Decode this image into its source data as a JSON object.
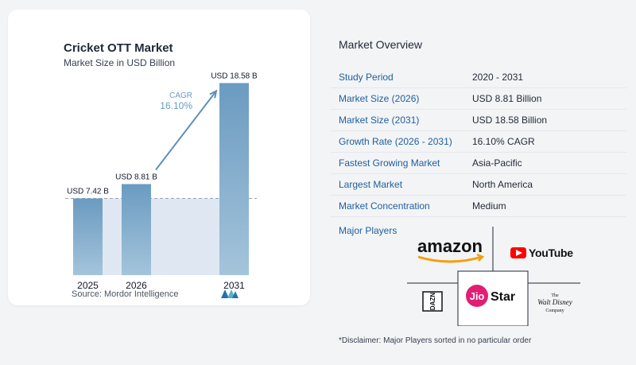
{
  "chart_data": {
    "type": "bar",
    "title": "Cricket OTT Market",
    "subtitle": "Market Size in USD Billion",
    "categories": [
      "2025",
      "2026",
      "2031"
    ],
    "values": [
      7.42,
      8.81,
      18.58
    ],
    "value_labels": [
      "USD 7.42 B",
      "USD 8.81 B",
      "USD 18.58 B"
    ],
    "ylim": [
      0,
      20
    ],
    "cagr_label": "CAGR",
    "cagr_value": "16.10%",
    "grid": false,
    "colors": {
      "bar": "#6b9bc1",
      "bar_light": "#a4c4db",
      "band": "#dfe8f2",
      "arrow": "#5f8fb8",
      "cagr": "#6b9bc1"
    }
  },
  "source": "Source:  Mordor Intelligence",
  "overview": {
    "title": "Market Overview",
    "rows": [
      {
        "label": "Study Period",
        "value": "2020 - 2031"
      },
      {
        "label": "Market Size (2026)",
        "value": "USD 8.81 Billion"
      },
      {
        "label": "Market Size (2031)",
        "value": "USD 18.58 Billion"
      },
      {
        "label": "Growth Rate (2026 - 2031)",
        "value": "16.10% CAGR"
      },
      {
        "label": "Fastest Growing Market",
        "value": "Asia-Pacific"
      },
      {
        "label": "Largest Market",
        "value": "North America"
      },
      {
        "label": "Market Concentration",
        "value": "Medium"
      }
    ]
  },
  "players": {
    "label": "Major Players",
    "logos": {
      "amazon": "amazon",
      "youtube": "YouTube",
      "dazn": "DAZN",
      "jiostar_jio": "Jio",
      "jiostar_star": "Star",
      "disney_line1": "The",
      "disney_line2": "Walt Disney",
      "disney_line3": "Company"
    }
  },
  "disclaimer": "*Disclaimer: Major Players sorted in no particular order"
}
